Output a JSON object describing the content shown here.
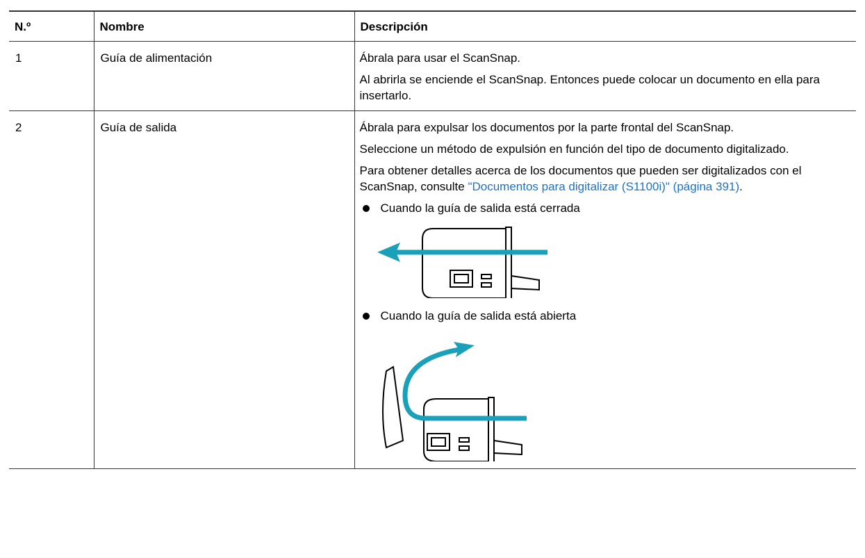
{
  "table": {
    "header": [
      "N.º",
      "Nombre",
      "Descripción"
    ],
    "rows": [
      {
        "number": "1",
        "name": "Guía de alimentación",
        "paragraphs": [
          "Ábrala para usar el ScanSnap.",
          "Al abrirla se enciende el ScanSnap. Entonces puede colocar un documento en ella para insertarlo."
        ]
      },
      {
        "number": "2",
        "name": "Guía de salida",
        "paragraphs": [
          "Ábrala para expulsar los documentos por la parte frontal del ScanSnap.",
          "Seleccione un método de expulsión en función del tipo de documento digitalizado."
        ],
        "reference": {
          "before": "Para obtener detalles acerca de los documentos que pueden ser digitalizados con el ScanSnap, consulte ",
          "link": "\"Documentos para digitalizar (S1100i)\" (página 391)",
          "after": "."
        },
        "bullets": [
          "Cuando la guía de salida está cerrada",
          "Cuando la guía de salida está abierta"
        ]
      }
    ]
  }
}
